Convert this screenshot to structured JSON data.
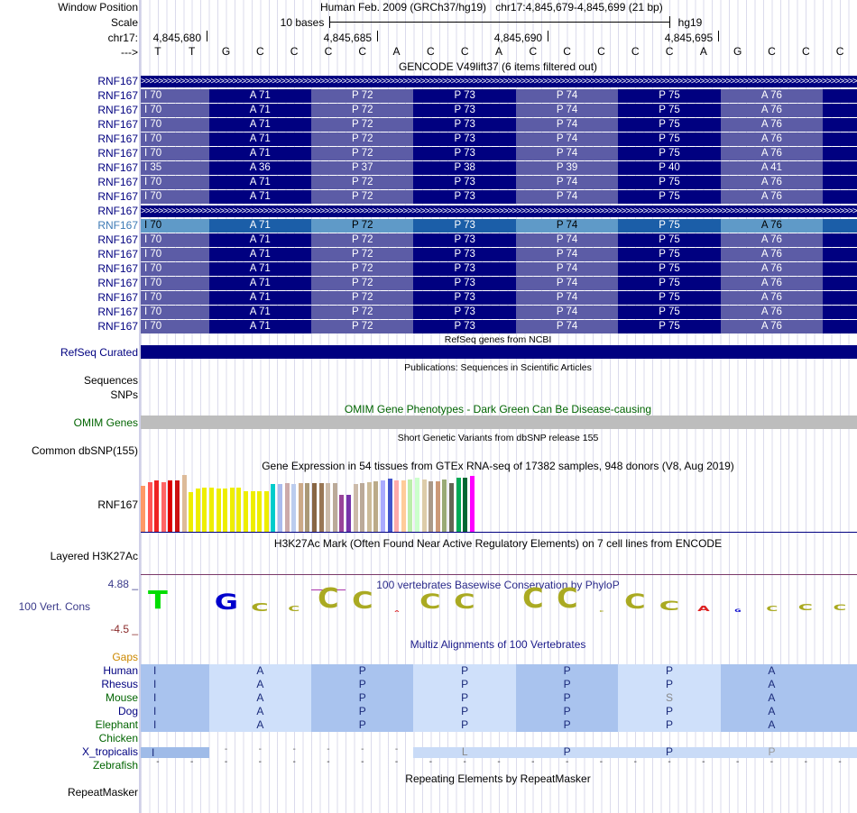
{
  "header": {
    "window_position_label": "Window Position",
    "scale_label": "Scale",
    "chrom_label": "chr17:",
    "strand_label": "--->",
    "assembly": "Human Feb. 2009 (GRCh37/hg19)",
    "position": "chr17:4,845,679-4,845,699 (21 bp)",
    "scale_text": "10 bases",
    "db": "hg19",
    "coords": [
      "4,845,680",
      "4,845,685",
      "4,845,690",
      "4,845,695"
    ],
    "bases": [
      "T",
      "T",
      "G",
      "C",
      "C",
      "C",
      "C",
      "A",
      "C",
      "C",
      "A",
      "C",
      "C",
      "C",
      "C",
      "C",
      "A",
      "G",
      "C",
      "C",
      "C"
    ]
  },
  "gencode": {
    "title": "GENCODE V49lift37 (6 items filtered out)",
    "gene_label": "RNF167",
    "highlight_color": "#3d7ab5",
    "rows": [
      {
        "type": "arrow"
      },
      {
        "type": "aa",
        "cells": [
          "I 70",
          "A 71",
          "P 72",
          "P 73",
          "P 74",
          "P 75",
          "A 76"
        ]
      },
      {
        "type": "aa",
        "cells": [
          "I 70",
          "A 71",
          "P 72",
          "P 73",
          "P 74",
          "P 75",
          "A 76"
        ]
      },
      {
        "type": "aa",
        "cells": [
          "I 70",
          "A 71",
          "P 72",
          "P 73",
          "P 74",
          "P 75",
          "A 76"
        ]
      },
      {
        "type": "aa",
        "cells": [
          "I 70",
          "A 71",
          "P 72",
          "P 73",
          "P 74",
          "P 75",
          "A 76"
        ]
      },
      {
        "type": "aa",
        "cells": [
          "I 70",
          "A 71",
          "P 72",
          "P 73",
          "P 74",
          "P 75",
          "A 76"
        ]
      },
      {
        "type": "aa",
        "cells": [
          "I 35",
          "A 36",
          "P 37",
          "P 38",
          "P 39",
          "P 40",
          "A 41"
        ]
      },
      {
        "type": "aa",
        "cells": [
          "I 70",
          "A 71",
          "P 72",
          "P 73",
          "P 74",
          "P 75",
          "A 76"
        ]
      },
      {
        "type": "aa",
        "cells": [
          "I 70",
          "A 71",
          "P 72",
          "P 73",
          "P 74",
          "P 75",
          "A 76"
        ]
      },
      {
        "type": "arrow"
      },
      {
        "type": "aa",
        "highlight": true,
        "cells": [
          "I 70",
          "A 71",
          "P 72",
          "P 73",
          "P 74",
          "P 75",
          "A 76"
        ]
      },
      {
        "type": "aa",
        "cells": [
          "I 70",
          "A 71",
          "P 72",
          "P 73",
          "P 74",
          "P 75",
          "A 76"
        ]
      },
      {
        "type": "aa",
        "cells": [
          "I 70",
          "A 71",
          "P 72",
          "P 73",
          "P 74",
          "P 75",
          "A 76"
        ]
      },
      {
        "type": "aa",
        "cells": [
          "I 70",
          "A 71",
          "P 72",
          "P 73",
          "P 74",
          "P 75",
          "A 76"
        ]
      },
      {
        "type": "aa",
        "cells": [
          "I 70",
          "A 71",
          "P 72",
          "P 73",
          "P 74",
          "P 75",
          "A 76"
        ]
      },
      {
        "type": "aa",
        "cells": [
          "I 70",
          "A 71",
          "P 72",
          "P 73",
          "P 74",
          "P 75",
          "A 76"
        ]
      },
      {
        "type": "aa",
        "cells": [
          "I 70",
          "A 71",
          "P 72",
          "P 73",
          "P 74",
          "P 75",
          "A 76"
        ]
      },
      {
        "type": "aa",
        "cells": [
          "I 70",
          "A 71",
          "P 72",
          "P 73",
          "P 74",
          "P 75",
          "A 76"
        ]
      }
    ]
  },
  "tracks": {
    "refseq_title": "RefSeq genes from NCBI",
    "refseq_label": "RefSeq Curated",
    "pubs_title": "Publications: Sequences in Scientific Articles",
    "pubs_label_1": "Sequences",
    "pubs_label_2": "SNPs",
    "omim_title": "OMIM Gene Phenotypes - Dark Green Can Be Disease-causing",
    "omim_label": "OMIM Genes",
    "dbsnp_title": "Short Genetic Variants from dbSNP release 155",
    "dbsnp_label": "Common dbSNP(155)",
    "gtex_title": "Gene Expression in 54 tissues from GTEx RNA-seq of 17382 samples, 948 donors (V8, Aug 2019)",
    "gtex_label": "RNF167",
    "h3k_title": "H3K27Ac Mark (Often Found Near Active Regulatory Elements) on 7 cell lines from ENCODE",
    "h3k_label": "Layered H3K27Ac",
    "phylop_title": "100 vertebrates Basewise Conservation by PhyloP",
    "phylop_label": "100 Vert. Cons",
    "phylop_max": "4.88 _",
    "phylop_min": "-4.5 _",
    "multiz_title": "Multiz Alignments of 100 Vertebrates",
    "gaps_label": "Gaps",
    "rmsk_title": "Repeating Elements by RepeatMasker",
    "rmsk_label": "RepeatMasker"
  },
  "gtex_colors": [
    "#ff9966",
    "#ff5555",
    "#ee2222",
    "#ff6666",
    "#dd0000",
    "#cc1111",
    "#ddbb99",
    "#eeee00",
    "#eeee00",
    "#eeee00",
    "#eeee00",
    "#eeee00",
    "#eeee00",
    "#eeee00",
    "#eeee00",
    "#eeee00",
    "#eeee00",
    "#eeee00",
    "#eeee00",
    "#00cccc",
    "#aabbee",
    "#ccaaaa",
    "#bbccee",
    "#ccaa88",
    "#aa9977",
    "#886644",
    "#997755",
    "#ccbbaa",
    "#bbaa99",
    "#994499",
    "#7733aa",
    "#ccbbaa",
    "#bbaa99",
    "#ccbb99",
    "#bbaa88",
    "#aaaaff",
    "#4455cc",
    "#ffaaaa",
    "#ffcc99",
    "#bbeeaa",
    "#ccffcc",
    "#ddccaa",
    "#aa9988",
    "#cc9977",
    "#99aa77",
    "#666655",
    "#00aa55",
    "#006633",
    "#ff00ff"
  ],
  "gtex_values": [
    50,
    53,
    55,
    53,
    55,
    55,
    61,
    43,
    47,
    48,
    48,
    47,
    47,
    48,
    48,
    44,
    44,
    44,
    44,
    51,
    51,
    52,
    51,
    52,
    52,
    52,
    52,
    52,
    52,
    40,
    40,
    51,
    52,
    53,
    54,
    55,
    57,
    55,
    55,
    56,
    58,
    56,
    54,
    54,
    56,
    52,
    58,
    58,
    60
  ],
  "phylop_logo": [
    {
      "ch": "T",
      "color": "#00dd00",
      "h": 28
    },
    {
      "ch": "",
      "color": "#000",
      "h": 0
    },
    {
      "ch": "G",
      "color": "#0000cc",
      "h": 24
    },
    {
      "ch": "C",
      "color": "#aaaa22",
      "h": 12
    },
    {
      "ch": "C",
      "color": "#aaaa22",
      "h": 8
    },
    {
      "ch": "C",
      "color": "#aaaa22",
      "h": 30
    },
    {
      "ch": "C",
      "color": "#aaaa22",
      "h": 26
    },
    {
      "ch": "A",
      "color": "#dd2222",
      "h": 3
    },
    {
      "ch": "C",
      "color": "#aaaa22",
      "h": 22
    },
    {
      "ch": "C",
      "color": "#aaaa22",
      "h": 22
    },
    {
      "ch": "",
      "color": "#000",
      "h": 0
    },
    {
      "ch": "C",
      "color": "#aaaa22",
      "h": 30
    },
    {
      "ch": "C",
      "color": "#aaaa22",
      "h": 30
    },
    {
      "ch": "C",
      "color": "#aaaa22",
      "h": 3
    },
    {
      "ch": "C",
      "color": "#aaaa22",
      "h": 22
    },
    {
      "ch": "C",
      "color": "#aaaa22",
      "h": 14
    },
    {
      "ch": "A",
      "color": "#dd2222",
      "h": 8
    },
    {
      "ch": "G",
      "color": "#0000cc",
      "h": 4
    },
    {
      "ch": "C",
      "color": "#aaaa22",
      "h": 8
    },
    {
      "ch": "C",
      "color": "#aaaa22",
      "h": 10
    },
    {
      "ch": "C",
      "color": "#aaaa22",
      "h": 9
    }
  ],
  "multiz": [
    {
      "name": "Human",
      "color": "#000080",
      "cells": [
        "I",
        "A",
        "P",
        "P",
        "P",
        "P",
        "A"
      ]
    },
    {
      "name": "Rhesus",
      "color": "#000080",
      "cells": [
        "I",
        "A",
        "P",
        "P",
        "P",
        "P",
        "A"
      ]
    },
    {
      "name": "Mouse",
      "color": "#006400",
      "cells": [
        "I",
        "A",
        "P",
        "P",
        "P",
        "S",
        "A"
      ]
    },
    {
      "name": "Dog",
      "color": "#000080",
      "cells": [
        "I",
        "A",
        "P",
        "P",
        "P",
        "P",
        "A"
      ]
    },
    {
      "name": "Elephant",
      "color": "#006400",
      "cells": [
        "I",
        "A",
        "P",
        "P",
        "P",
        "P",
        "A"
      ]
    },
    {
      "name": "Chicken",
      "color": "#006400",
      "cells": []
    },
    {
      "name": "X_tropicalis",
      "color": "#000080",
      "partial": true,
      "cells": [
        "I",
        "-",
        "-",
        "-",
        "-",
        "-",
        "-",
        "-",
        "L",
        "P",
        "P",
        "P"
      ]
    },
    {
      "name": "Zebrafish",
      "color": "#006400",
      "dashes": true,
      "cells": [
        "-"
      ]
    }
  ]
}
